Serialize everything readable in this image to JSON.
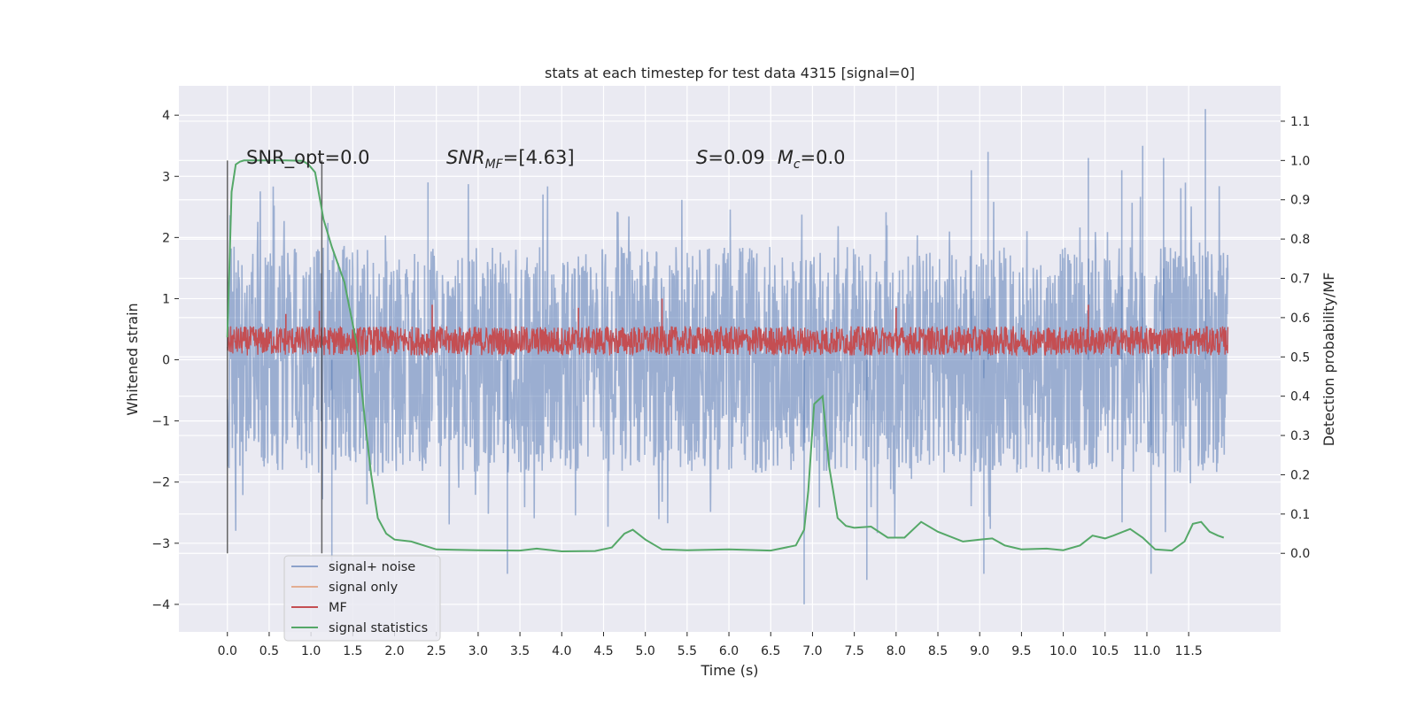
{
  "chart_data": {
    "type": "line",
    "title": "stats at each timestep for test data 4315 [signal=0]",
    "xlabel": "Time (s)",
    "ylabel": "Whitened strain",
    "ylabel_right": "Detection probability/MF",
    "xlim": [
      -0.58,
      12.6
    ],
    "ylim": [
      -4.45,
      4.48
    ],
    "ylim_right": [
      -0.2,
      1.19
    ],
    "x_ticks": [
      "0.0",
      "0.5",
      "1.0",
      "1.5",
      "2.0",
      "2.5",
      "3.0",
      "3.5",
      "4.0",
      "4.5",
      "5.0",
      "5.5",
      "6.0",
      "6.5",
      "7.0",
      "7.5",
      "8.0",
      "8.5",
      "9.0",
      "9.5",
      "10.0",
      "10.5",
      "11.0",
      "11.5"
    ],
    "y_ticks": [
      "4",
      "3",
      "2",
      "1",
      "0",
      "−1",
      "−2",
      "−3",
      "−4"
    ],
    "y_ticks_right": [
      "1.1",
      "1.0",
      "0.9",
      "0.8",
      "0.7",
      "0.6",
      "0.5",
      "0.4",
      "0.3",
      "0.2",
      "0.1",
      "0.0"
    ],
    "grid": true,
    "legend_position": "lower-left",
    "annotations": {
      "snr_opt": "SNR_opt=0.0",
      "snr_mf": "SNR_MF=[4.63]",
      "snr_mf_base": "SNR",
      "snr_mf_sub": "MF",
      "snr_mf_rest": "=[4.63]",
      "s_var": "S",
      "s_val": "=0.09",
      "mc_var": "M",
      "mc_sub": "c",
      "mc_val": "=0.0"
    },
    "vertical_markers": [
      0.0,
      1.13
    ],
    "x_end": 11.97,
    "series": [
      {
        "name": "signal+ noise",
        "color": "#4c72b0",
        "opacity": 0.5,
        "envelope_upper": 1.85,
        "envelope_lower": -1.85,
        "peak_max": 4.1,
        "peak_min": -4.0,
        "spikes": [
          [
            10.3,
            3.3
          ],
          [
            9.1,
            3.4
          ],
          [
            11.7,
            4.1
          ],
          [
            10.95,
            3.5
          ],
          [
            6.9,
            -4.0
          ],
          [
            9.05,
            -3.5
          ],
          [
            3.35,
            -3.5
          ],
          [
            7.65,
            -3.6
          ],
          [
            11.05,
            -3.5
          ],
          [
            1.25,
            -3.3
          ],
          [
            2.4,
            2.9
          ],
          [
            10.7,
            3.1
          ],
          [
            8.9,
            3.1
          ],
          [
            11.2,
            3.3
          ]
        ]
      },
      {
        "name": "signal only",
        "color": "#dd8452",
        "values": []
      },
      {
        "name": "MF",
        "color": "#c44e52",
        "band_lower": 0.07,
        "band_upper": 0.55,
        "peaks": [
          [
            1.1,
            0.8
          ],
          [
            2.45,
            0.9
          ],
          [
            5.2,
            1.0
          ],
          [
            10.3,
            0.9
          ],
          [
            8.0,
            0.85
          ],
          [
            4.2,
            0.85
          ],
          [
            0.7,
            0.75
          ]
        ]
      },
      {
        "name": "signal statistics",
        "color": "#55a868",
        "x": [
          0.0,
          0.05,
          0.1,
          0.15,
          0.2,
          0.3,
          0.5,
          0.7,
          0.9,
          0.97,
          1.05,
          1.15,
          1.25,
          1.4,
          1.55,
          1.65,
          1.72,
          1.8,
          1.9,
          2.0,
          2.2,
          2.5,
          3.0,
          3.5,
          3.7,
          4.0,
          4.4,
          4.6,
          4.75,
          4.85,
          5.0,
          5.2,
          5.5,
          6.0,
          6.5,
          6.8,
          6.9,
          6.95,
          7.02,
          7.12,
          7.2,
          7.3,
          7.4,
          7.5,
          7.7,
          7.9,
          8.1,
          8.3,
          8.5,
          8.8,
          9.0,
          9.15,
          9.3,
          9.5,
          9.8,
          10.0,
          10.2,
          10.35,
          10.5,
          10.6,
          10.8,
          10.95,
          11.1,
          11.3,
          11.45,
          11.55,
          11.65,
          11.75,
          11.85,
          11.92
        ],
        "values": [
          0.55,
          0.92,
          0.99,
          0.997,
          1.0,
          1.0,
          1.0,
          1.0,
          0.999,
          0.99,
          0.97,
          0.85,
          0.78,
          0.69,
          0.53,
          0.33,
          0.2,
          0.09,
          0.05,
          0.035,
          0.03,
          0.01,
          0.008,
          0.007,
          0.012,
          0.005,
          0.006,
          0.015,
          0.05,
          0.06,
          0.035,
          0.01,
          0.008,
          0.01,
          0.007,
          0.02,
          0.06,
          0.16,
          0.38,
          0.4,
          0.22,
          0.09,
          0.07,
          0.065,
          0.068,
          0.04,
          0.04,
          0.08,
          0.055,
          0.03,
          0.035,
          0.038,
          0.02,
          0.01,
          0.012,
          0.008,
          0.02,
          0.045,
          0.038,
          0.045,
          0.062,
          0.04,
          0.01,
          0.007,
          0.03,
          0.075,
          0.08,
          0.055,
          0.045,
          0.04
        ]
      }
    ]
  }
}
